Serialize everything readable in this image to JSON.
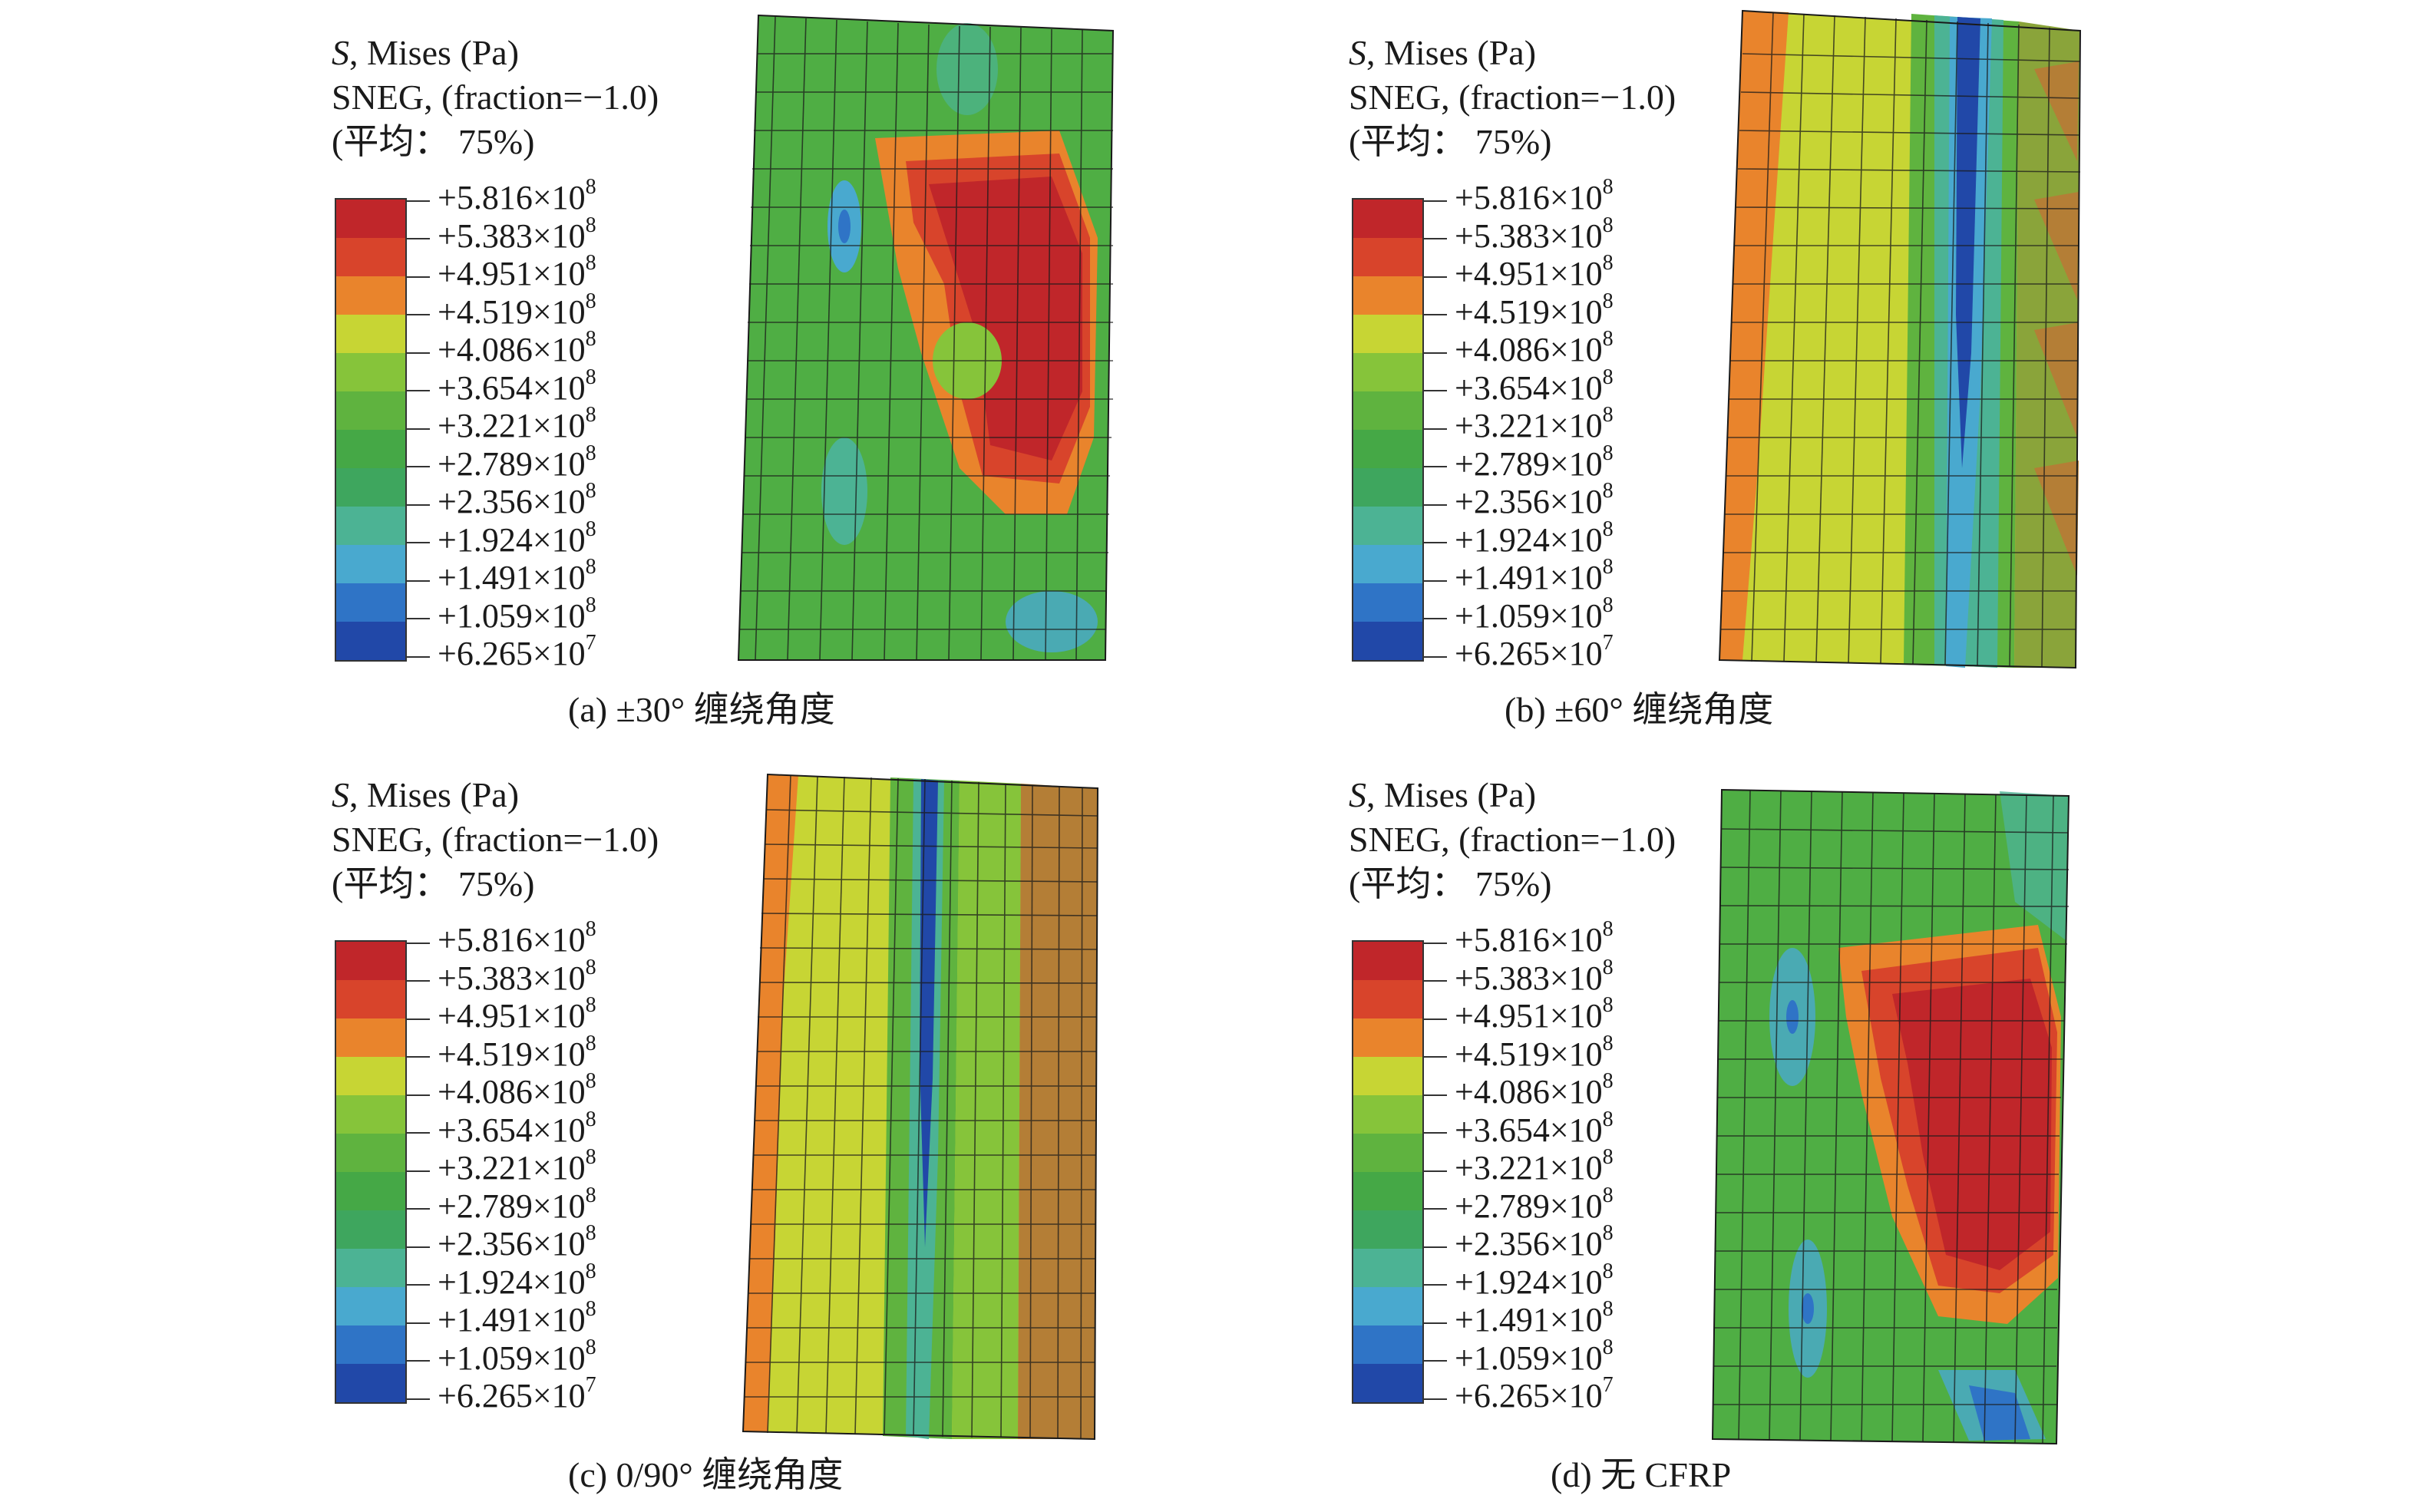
{
  "legend": {
    "line1_italic": "S",
    "line1_rest": ", Mises (Pa)",
    "line2": "SNEG, (fraction=−1.0)",
    "line3": "(平均：  75%)",
    "levels": [
      {
        "mantissa": "+5.816×10",
        "exp": "8",
        "color": "#c0262a"
      },
      {
        "mantissa": "+5.383×10",
        "exp": "8",
        "color": "#d8442b"
      },
      {
        "mantissa": "+4.951×10",
        "exp": "8",
        "color": "#e9842c"
      },
      {
        "mantissa": "+4.519×10",
        "exp": "8",
        "color": "#c7d534"
      },
      {
        "mantissa": "+4.086×10",
        "exp": "8",
        "color": "#86c43a"
      },
      {
        "mantissa": "+3.654×10",
        "exp": "8",
        "color": "#5fb33f"
      },
      {
        "mantissa": "+3.221×10",
        "exp": "8",
        "color": "#45a846"
      },
      {
        "mantissa": "+2.789×10",
        "exp": "8",
        "color": "#3ea65e"
      },
      {
        "mantissa": "+2.356×10",
        "exp": "8",
        "color": "#4cb394"
      },
      {
        "mantissa": "+1.924×10",
        "exp": "8",
        "color": "#49a9cf"
      },
      {
        "mantissa": "+1.491×10",
        "exp": "8",
        "color": "#2f74c6"
      },
      {
        "mantissa": "+1.059×10",
        "exp": "8",
        "color": "#2148a8"
      },
      {
        "mantissa": "+6.265×10",
        "exp": "7",
        "color": "#1b3a93"
      }
    ]
  },
  "panels": [
    {
      "id": "a",
      "caption": "(a) ±30° 缠绕角度"
    },
    {
      "id": "b",
      "caption": "(b) ±60° 缠绕角度"
    },
    {
      "id": "c",
      "caption": "(c) 0/90° 缠绕角度"
    },
    {
      "id": "d",
      "caption": "(d) 无 CFRP"
    }
  ]
}
